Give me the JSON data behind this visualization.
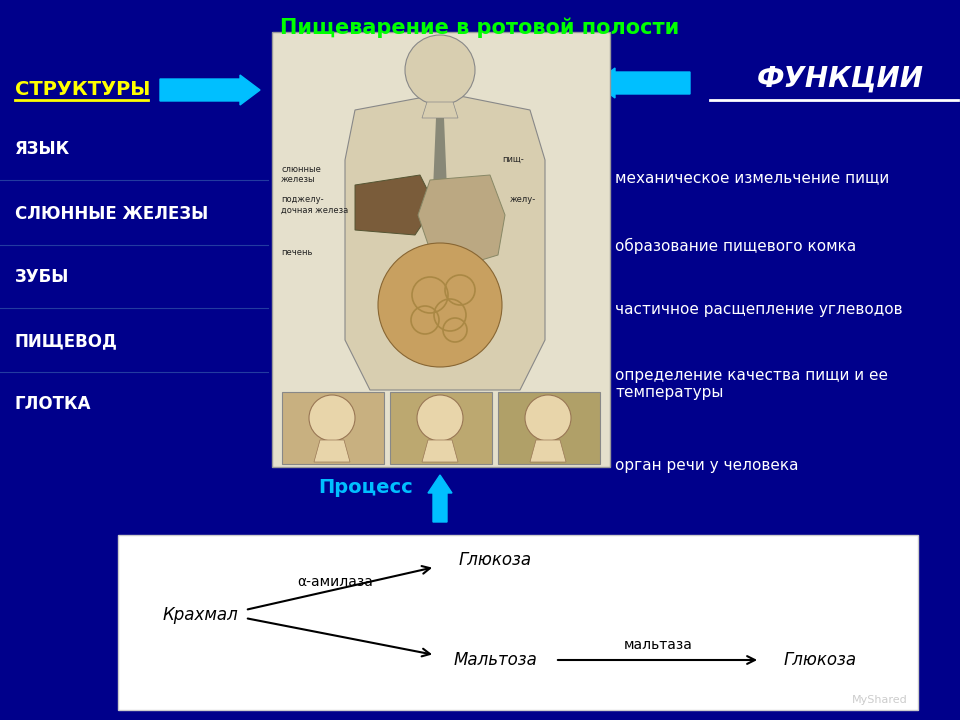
{
  "title": "Пищеварение в ротовой полости",
  "title_color": "#00FF00",
  "bg_color": "#00008B",
  "structures_label": "СТРУКТУРЫ",
  "functions_label": "ФУНКЦИИ",
  "process_label": "Процесс",
  "structures": [
    "ЯЗЫК",
    "СЛЮННЫЕ ЖЕЛЕЗЫ",
    "ЗУБЫ",
    "ПИЩЕВОД",
    "ГЛОТКА"
  ],
  "functions": [
    "механическое измельчение пищи",
    "образование пищевого комка",
    "частичное расщепление углеводов",
    "определение качества пищи и ее\nтемпературы",
    "орган речи у человека"
  ],
  "process_box_color": "#FFFFFF",
  "process_text_color": "#00BFFF",
  "arrow_color": "#00BFFF",
  "text_color": "#FFFFFF",
  "left_label_color": "#FFFF00",
  "right_label_color": "#FFFFFF",
  "process_diagram": {
    "krakhmal": "Крахмал",
    "glyukoza_top": "Глюкоза",
    "alpha_amilaza": "α-амилаза",
    "maltoza": "Мальтоза",
    "maltaza": "мальтаза",
    "glyukoza_bot": "Глюкоза"
  }
}
